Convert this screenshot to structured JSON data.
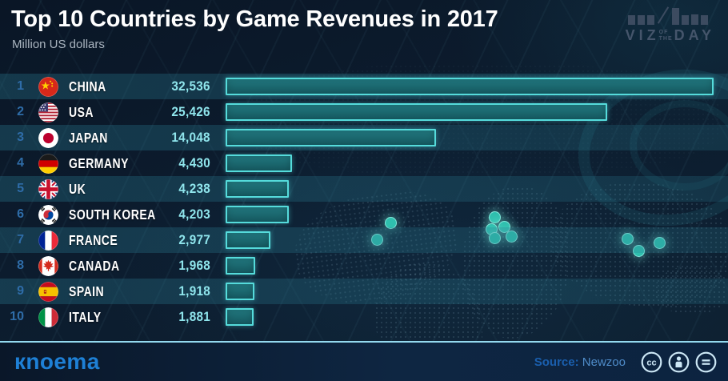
{
  "header": {
    "title": "Top 10 Countries by Game Revenues in 2017",
    "subtitle": "Million US dollars",
    "viz_logo": {
      "viz": "VIZ",
      "of": "OF",
      "the": "THE",
      "day": "DAY"
    }
  },
  "table": {
    "rows": [
      {
        "rank": "1",
        "country": "CHINA",
        "value_label": "32,536",
        "flag": "china"
      },
      {
        "rank": "2",
        "country": "USA",
        "value_label": "25,426",
        "flag": "usa"
      },
      {
        "rank": "3",
        "country": "JAPAN",
        "value_label": "14,048",
        "flag": "japan"
      },
      {
        "rank": "4",
        "country": "GERMANY",
        "value_label": "4,430",
        "flag": "germany"
      },
      {
        "rank": "5",
        "country": "UK",
        "value_label": "4,238",
        "flag": "uk"
      },
      {
        "rank": "6",
        "country": "SOUTH KOREA",
        "value_label": "4,203",
        "flag": "south-korea"
      },
      {
        "rank": "7",
        "country": "FRANCE",
        "value_label": "2,977",
        "flag": "france"
      },
      {
        "rank": "8",
        "country": "CANADA",
        "value_label": "1,968",
        "flag": "canada"
      },
      {
        "rank": "9",
        "country": "SPAIN",
        "value_label": "1,918",
        "flag": "spain"
      },
      {
        "rank": "10",
        "country": "ITALY",
        "value_label": "1,881",
        "flag": "italy"
      }
    ]
  },
  "chart_data": {
    "type": "bar",
    "orientation": "horizontal",
    "title": "Top 10 Countries by Game Revenues in 2017",
    "units": "Million US dollars",
    "categories": [
      "China",
      "USA",
      "Japan",
      "Germany",
      "UK",
      "South Korea",
      "France",
      "Canada",
      "Spain",
      "Italy"
    ],
    "values": [
      32536,
      25426,
      14048,
      4430,
      4238,
      4203,
      2977,
      1968,
      1918,
      1881
    ],
    "value_labels": [
      "32,536",
      "25,426",
      "14,048",
      "4,430",
      "4,238",
      "4,203",
      "2,977",
      "1,968",
      "1,918",
      "1,881"
    ],
    "xlim": [
      0,
      32536
    ],
    "grid": false,
    "legend": "none",
    "bar_color": "#1b686f",
    "bar_border_color": "#55dbdb",
    "value_color": "#8fe5ec",
    "rank_color": "#2e6ca8"
  },
  "footer": {
    "brand": "кnoema",
    "source_label": "Source:",
    "source_value": "Newzoo",
    "license_icons": [
      "cc",
      "by",
      "nd"
    ]
  },
  "colors": {
    "background": "#0c1c2e",
    "stripe": "rgba(40,120,142,0.3)",
    "accent_teal": "#55dbdb",
    "brand_blue": "#1e80d6",
    "footer_line": "#93d9ef"
  }
}
